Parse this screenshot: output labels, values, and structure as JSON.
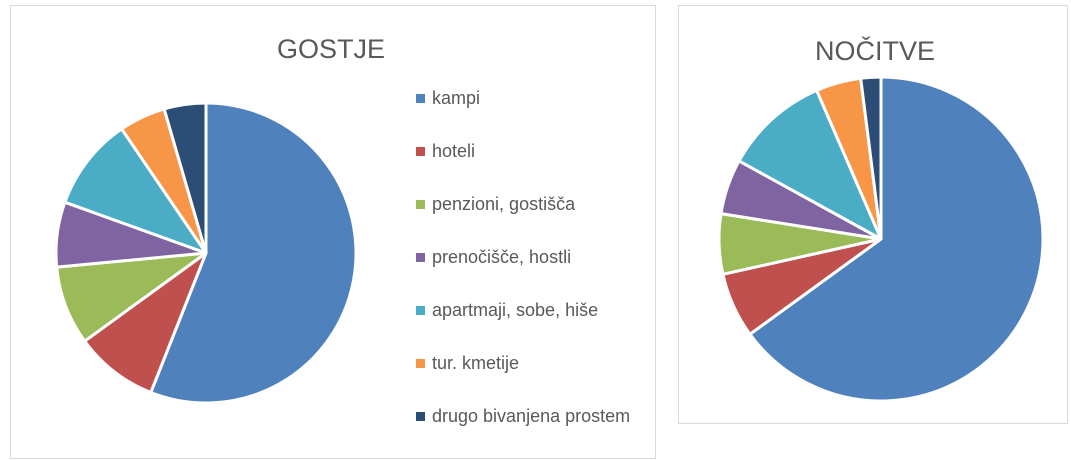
{
  "chart_data": [
    {
      "type": "pie",
      "title": "GOSTJE",
      "categories": [
        "kampi",
        "hoteli",
        "penzioni, gostišča",
        "prenočišče, hostli",
        "apartmaji, sobe, hiše",
        "tur. kmetije",
        "drugo bivanjena prostem"
      ],
      "values": [
        56,
        9,
        8.5,
        7,
        10,
        5,
        4.5
      ],
      "colors": [
        "#4f81bd",
        "#c0504d",
        "#9bbb59",
        "#8064a2",
        "#4bacc6",
        "#f79646",
        "#2c4d75"
      ],
      "legend": "right"
    },
    {
      "type": "pie",
      "title": "NOČITVE",
      "values": [
        65,
        6.5,
        6,
        5.5,
        10.5,
        4.5,
        2
      ],
      "colors": [
        "#4f81bd",
        "#c0504d",
        "#9bbb59",
        "#8064a2",
        "#4bacc6",
        "#f79646",
        "#2c4d75"
      ]
    }
  ]
}
